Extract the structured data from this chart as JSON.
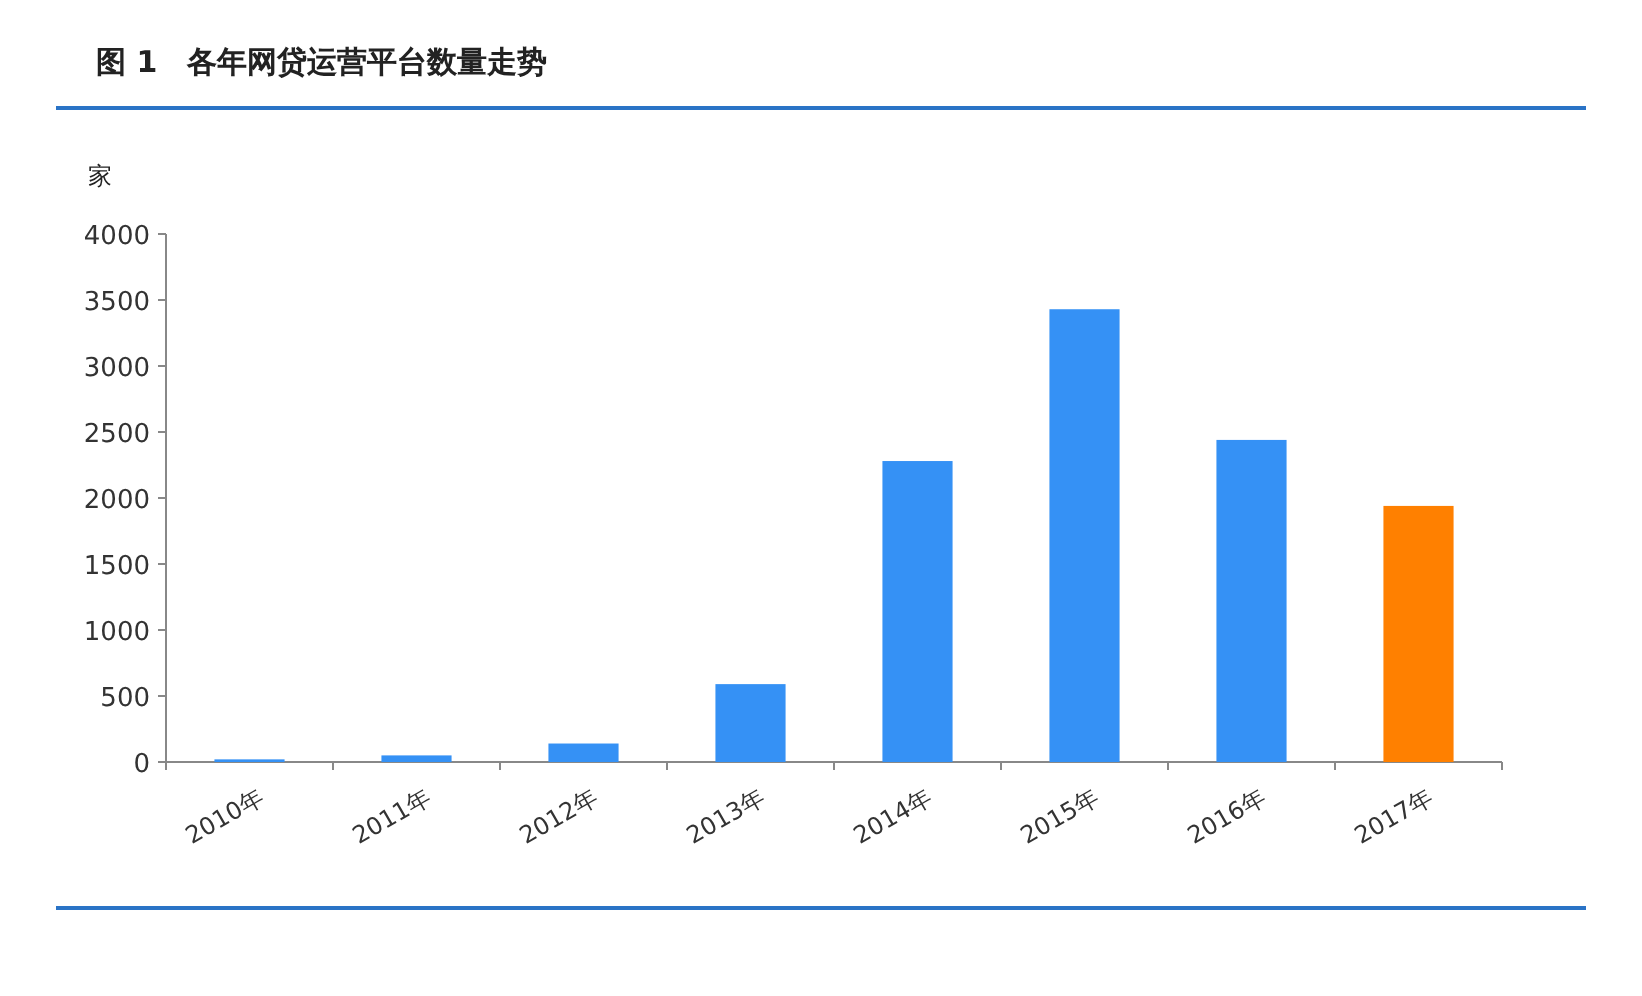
{
  "chart_data": {
    "type": "bar",
    "title": "图 1　各年网贷运营平台数量走势",
    "ylabel": "家",
    "categories": [
      "2010年",
      "2011年",
      "2012年",
      "2013年",
      "2014年",
      "2015年",
      "2016年",
      "2017年"
    ],
    "values": [
      20,
      50,
      140,
      590,
      2280,
      3430,
      2440,
      1940
    ],
    "colors": [
      "#3591f5",
      "#3591f5",
      "#3591f5",
      "#3591f5",
      "#3591f5",
      "#3591f5",
      "#3591f5",
      "#ff8000"
    ],
    "ylim": [
      0,
      4000
    ],
    "yticks": [
      0,
      500,
      1000,
      1500,
      2000,
      2500,
      3000,
      3500,
      4000
    ]
  }
}
